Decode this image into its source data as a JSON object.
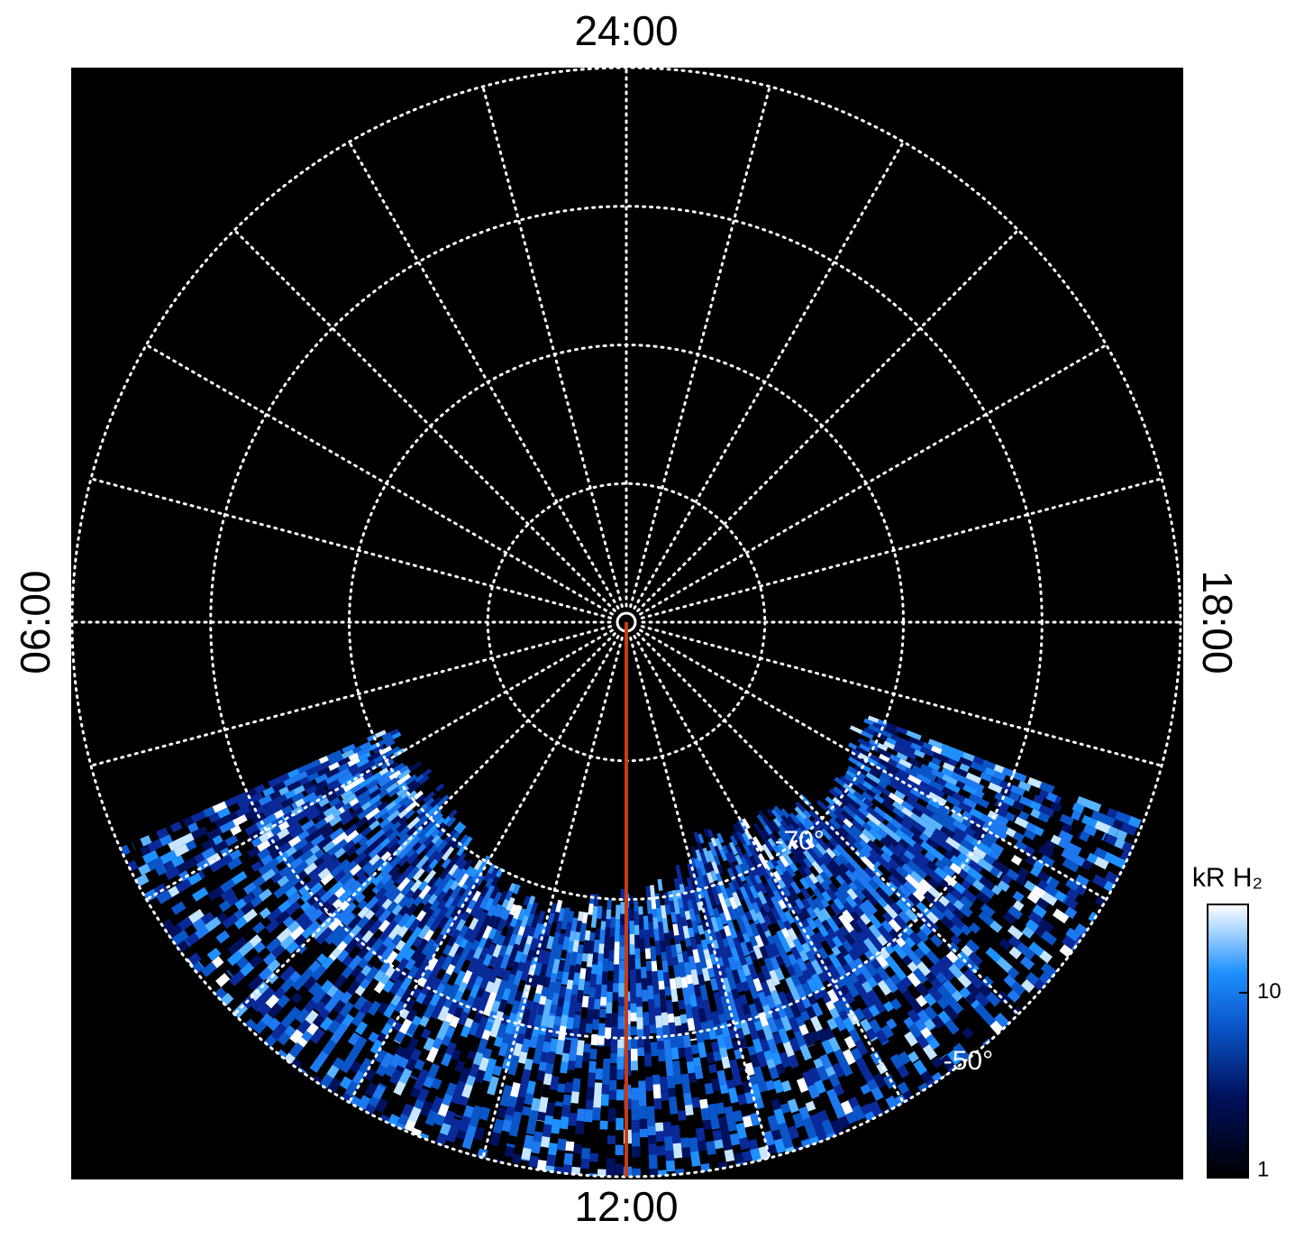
{
  "chart_data": {
    "type": "polar",
    "rlim": [
      -90,
      -50
    ],
    "rgrid": [
      -80,
      -70,
      -60,
      -50
    ],
    "rlabels": [
      {
        "value": -70,
        "label": "-70°"
      },
      {
        "value": -50,
        "label": "-50°"
      }
    ],
    "rlabel_hour": 14.5,
    "thetalim": [
      0,
      24
    ],
    "thetagrid": [
      0,
      1,
      2,
      3,
      4,
      5,
      6,
      7,
      8,
      9,
      10,
      11,
      12,
      13,
      14,
      15,
      16,
      17,
      18,
      19,
      20,
      21,
      22,
      23
    ],
    "thetaticks": [
      {
        "value": 24,
        "label": "24:00"
      },
      {
        "value": 6,
        "label": "06:00"
      },
      {
        "value": 12,
        "label": "12:00"
      },
      {
        "value": 18,
        "label": "18:00"
      }
    ],
    "meridian_hour": 12,
    "meridian_color": "#c83c14",
    "colorbar": {
      "label": "kR H₂",
      "log": true,
      "lim": [
        1,
        30
      ],
      "ticks": [
        1,
        10
      ]
    }
  }
}
